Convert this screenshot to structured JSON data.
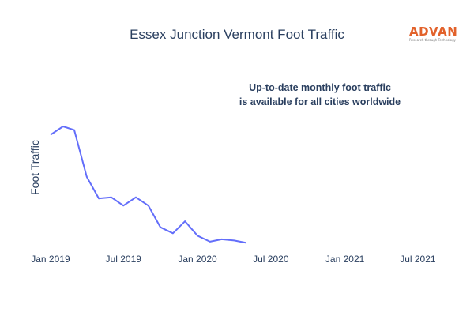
{
  "title": "Essex Junction Vermont Foot Traffic",
  "logo": {
    "word": "ADVAN",
    "tagline": "Research through Technology",
    "color": "#e2622b"
  },
  "annotation": {
    "line1": "Up-to-date monthly foot traffic",
    "line2": "is available for all cities worldwide"
  },
  "chart_data": {
    "type": "line",
    "title": "Essex Junction Vermont Foot Traffic",
    "xlabel": "",
    "ylabel": "Foot Traffic",
    "y_tick_labels_shown": false,
    "grid": false,
    "line_color": "#636efa",
    "x_ticks": [
      "Jan 2019",
      "Jul 2019",
      "Jan 2020",
      "Jul 2020",
      "Jan 2021",
      "Jul 2021"
    ],
    "x_tick_dates": [
      "2019-01-01",
      "2019-07-01",
      "2020-01-01",
      "2020-07-01",
      "2021-01-01",
      "2021-07-01"
    ],
    "xlim": [
      "2018-11-15",
      "2021-08-31"
    ],
    "ylim": [
      0,
      100
    ],
    "series": [
      {
        "x": [
          "2019-01-01",
          "2019-02-01",
          "2019-03-01",
          "2019-04-01",
          "2019-05-01",
          "2019-06-01",
          "2019-07-01",
          "2019-08-01",
          "2019-09-01",
          "2019-10-01",
          "2019-11-01",
          "2019-12-01",
          "2020-01-01",
          "2020-02-01",
          "2020-03-01",
          "2020-04-01",
          "2020-05-01"
        ],
        "values": [
          93,
          100,
          97,
          58,
          40,
          41,
          34,
          41,
          34,
          16,
          11,
          21,
          9,
          4,
          6,
          5,
          3
        ]
      }
    ]
  }
}
